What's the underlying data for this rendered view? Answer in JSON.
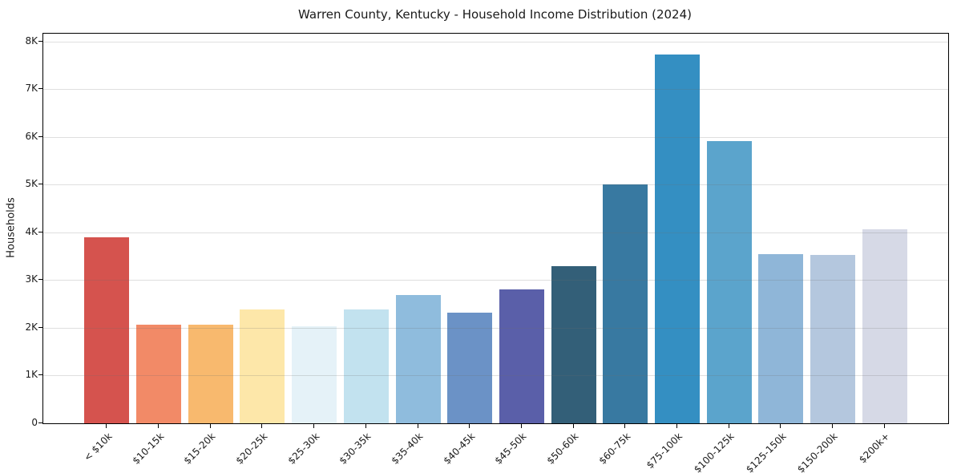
{
  "chart_data": {
    "type": "bar",
    "title": "Warren County, Kentucky - Household Income Distribution (2024)",
    "xlabel": "",
    "ylabel": "Households",
    "categories": [
      "< $10k",
      "$10-15k",
      "$15-20k",
      "$20-25k",
      "$25-30k",
      "$30-35k",
      "$35-40k",
      "$40-45k",
      "$45-50k",
      "$50-60k",
      "$60-75k",
      "$75-100k",
      "$100-125k",
      "$125-150k",
      "$150-200k",
      "$200k+"
    ],
    "values": [
      3890,
      2060,
      2060,
      2380,
      2040,
      2380,
      2680,
      2320,
      2800,
      3300,
      5000,
      7730,
      5910,
      3540,
      3530,
      4060
    ],
    "bar_colors": [
      "#d5534e",
      "#f28a67",
      "#f8b96e",
      "#fde7a9",
      "#e5f2f8",
      "#c2e2ef",
      "#8fbcdd",
      "#6b92c6",
      "#5a5fa9",
      "#335f78",
      "#3879a1",
      "#348fc2",
      "#5ba4cc",
      "#8fb6d8",
      "#b4c7de",
      "#d6d9e6"
    ],
    "ytick_labels": [
      "0",
      "1K",
      "2K",
      "3K",
      "4K",
      "5K",
      "6K",
      "7K",
      "8K"
    ],
    "ytick_values": [
      0,
      1000,
      2000,
      3000,
      4000,
      5000,
      6000,
      7000,
      8000
    ],
    "ylim": [
      0,
      8160
    ],
    "grid": "horizontal-only",
    "legend": "none",
    "background_color": "#ffffff",
    "spine_color": "#000000",
    "text_color": "#1a1a1a"
  }
}
